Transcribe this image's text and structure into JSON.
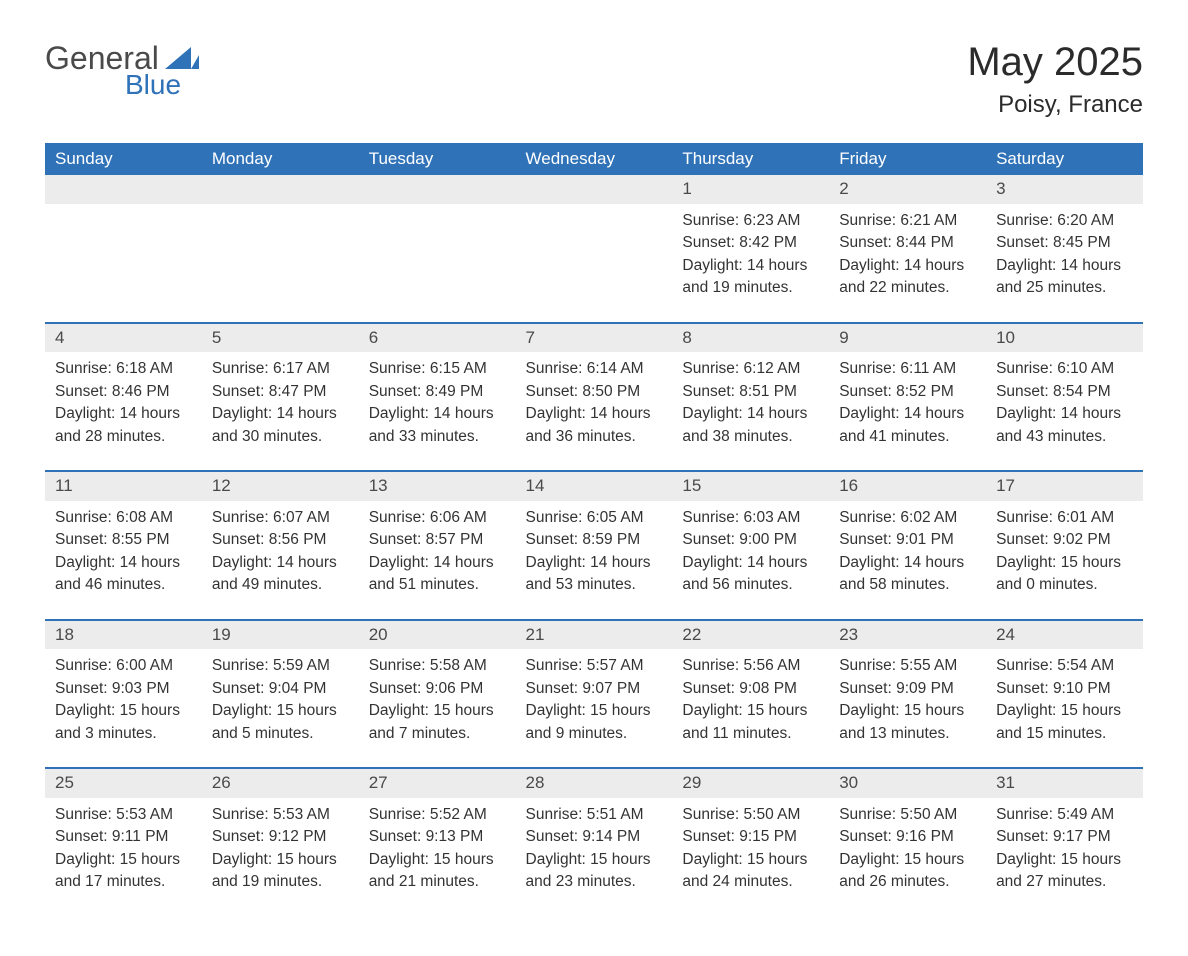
{
  "logo": {
    "main": "General",
    "sub": "Blue",
    "icon_color": "#2f72b8"
  },
  "title": "May 2025",
  "location": "Poisy, France",
  "colors": {
    "header_bg": "#2f72b8",
    "header_text": "#ffffff",
    "daynum_bg": "#ececec",
    "row_border": "#2f72b8",
    "body_text": "#333333",
    "page_bg": "#ffffff"
  },
  "day_headers": [
    "Sunday",
    "Monday",
    "Tuesday",
    "Wednesday",
    "Thursday",
    "Friday",
    "Saturday"
  ],
  "weeks": [
    [
      null,
      null,
      null,
      null,
      {
        "n": "1",
        "sr": "6:23 AM",
        "ss": "8:42 PM",
        "dl": "14 hours and 19 minutes."
      },
      {
        "n": "2",
        "sr": "6:21 AM",
        "ss": "8:44 PM",
        "dl": "14 hours and 22 minutes."
      },
      {
        "n": "3",
        "sr": "6:20 AM",
        "ss": "8:45 PM",
        "dl": "14 hours and 25 minutes."
      }
    ],
    [
      {
        "n": "4",
        "sr": "6:18 AM",
        "ss": "8:46 PM",
        "dl": "14 hours and 28 minutes."
      },
      {
        "n": "5",
        "sr": "6:17 AM",
        "ss": "8:47 PM",
        "dl": "14 hours and 30 minutes."
      },
      {
        "n": "6",
        "sr": "6:15 AM",
        "ss": "8:49 PM",
        "dl": "14 hours and 33 minutes."
      },
      {
        "n": "7",
        "sr": "6:14 AM",
        "ss": "8:50 PM",
        "dl": "14 hours and 36 minutes."
      },
      {
        "n": "8",
        "sr": "6:12 AM",
        "ss": "8:51 PM",
        "dl": "14 hours and 38 minutes."
      },
      {
        "n": "9",
        "sr": "6:11 AM",
        "ss": "8:52 PM",
        "dl": "14 hours and 41 minutes."
      },
      {
        "n": "10",
        "sr": "6:10 AM",
        "ss": "8:54 PM",
        "dl": "14 hours and 43 minutes."
      }
    ],
    [
      {
        "n": "11",
        "sr": "6:08 AM",
        "ss": "8:55 PM",
        "dl": "14 hours and 46 minutes."
      },
      {
        "n": "12",
        "sr": "6:07 AM",
        "ss": "8:56 PM",
        "dl": "14 hours and 49 minutes."
      },
      {
        "n": "13",
        "sr": "6:06 AM",
        "ss": "8:57 PM",
        "dl": "14 hours and 51 minutes."
      },
      {
        "n": "14",
        "sr": "6:05 AM",
        "ss": "8:59 PM",
        "dl": "14 hours and 53 minutes."
      },
      {
        "n": "15",
        "sr": "6:03 AM",
        "ss": "9:00 PM",
        "dl": "14 hours and 56 minutes."
      },
      {
        "n": "16",
        "sr": "6:02 AM",
        "ss": "9:01 PM",
        "dl": "14 hours and 58 minutes."
      },
      {
        "n": "17",
        "sr": "6:01 AM",
        "ss": "9:02 PM",
        "dl": "15 hours and 0 minutes."
      }
    ],
    [
      {
        "n": "18",
        "sr": "6:00 AM",
        "ss": "9:03 PM",
        "dl": "15 hours and 3 minutes."
      },
      {
        "n": "19",
        "sr": "5:59 AM",
        "ss": "9:04 PM",
        "dl": "15 hours and 5 minutes."
      },
      {
        "n": "20",
        "sr": "5:58 AM",
        "ss": "9:06 PM",
        "dl": "15 hours and 7 minutes."
      },
      {
        "n": "21",
        "sr": "5:57 AM",
        "ss": "9:07 PM",
        "dl": "15 hours and 9 minutes."
      },
      {
        "n": "22",
        "sr": "5:56 AM",
        "ss": "9:08 PM",
        "dl": "15 hours and 11 minutes."
      },
      {
        "n": "23",
        "sr": "5:55 AM",
        "ss": "9:09 PM",
        "dl": "15 hours and 13 minutes."
      },
      {
        "n": "24",
        "sr": "5:54 AM",
        "ss": "9:10 PM",
        "dl": "15 hours and 15 minutes."
      }
    ],
    [
      {
        "n": "25",
        "sr": "5:53 AM",
        "ss": "9:11 PM",
        "dl": "15 hours and 17 minutes."
      },
      {
        "n": "26",
        "sr": "5:53 AM",
        "ss": "9:12 PM",
        "dl": "15 hours and 19 minutes."
      },
      {
        "n": "27",
        "sr": "5:52 AM",
        "ss": "9:13 PM",
        "dl": "15 hours and 21 minutes."
      },
      {
        "n": "28",
        "sr": "5:51 AM",
        "ss": "9:14 PM",
        "dl": "15 hours and 23 minutes."
      },
      {
        "n": "29",
        "sr": "5:50 AM",
        "ss": "9:15 PM",
        "dl": "15 hours and 24 minutes."
      },
      {
        "n": "30",
        "sr": "5:50 AM",
        "ss": "9:16 PM",
        "dl": "15 hours and 26 minutes."
      },
      {
        "n": "31",
        "sr": "5:49 AM",
        "ss": "9:17 PM",
        "dl": "15 hours and 27 minutes."
      }
    ]
  ],
  "labels": {
    "sunrise": "Sunrise: ",
    "sunset": "Sunset: ",
    "daylight": "Daylight: "
  }
}
